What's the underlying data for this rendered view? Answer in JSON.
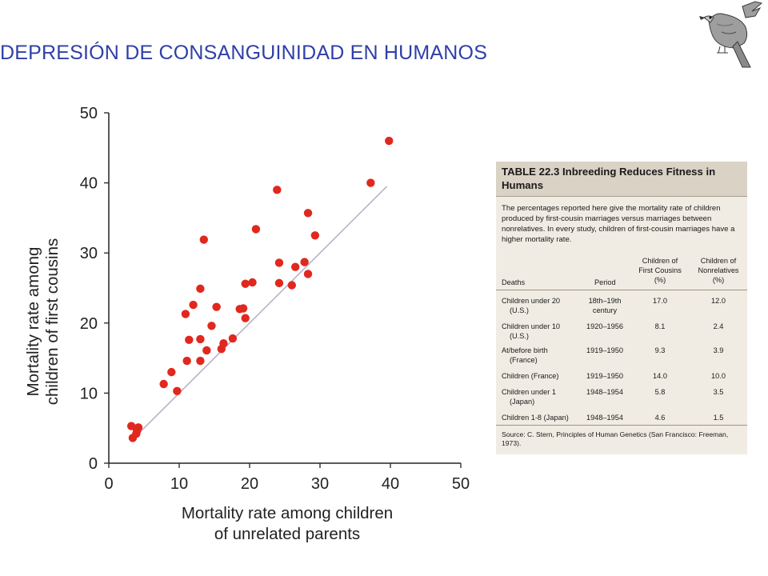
{
  "slide": {
    "title": "DEPRESIÓN  DE CONSANGUINIDAD EN HUMANOS"
  },
  "colors": {
    "title": "#2f3fa8",
    "points": "#e0281e",
    "fit_line": "#b8b2cc",
    "table_bg": "#f1ece3",
    "table_header_bg": "#d9d2c5"
  },
  "icons": {
    "logo": "bird-illustration"
  },
  "chart_data": {
    "type": "scatter",
    "xlabel": [
      "Mortality rate among children",
      "of unrelated parents"
    ],
    "ylabel": [
      "Mortality rate among",
      "children of first cousins"
    ],
    "xlim": [
      0,
      50
    ],
    "ylim": [
      0,
      50
    ],
    "xticks": [
      "0",
      "10",
      "20",
      "30",
      "40",
      "50"
    ],
    "yticks": [
      "0",
      "10",
      "20",
      "30",
      "40",
      "50"
    ],
    "grid": false,
    "reference_line": {
      "from": [
        3.5,
        3.5
      ],
      "to": [
        39.5,
        39.5
      ]
    },
    "points": [
      [
        3.2,
        5.3
      ],
      [
        3.4,
        3.6
      ],
      [
        3.9,
        4.2
      ],
      [
        4.2,
        5.1
      ],
      [
        4.0,
        4.6
      ],
      [
        7.8,
        11.3
      ],
      [
        8.9,
        13.0
      ],
      [
        9.7,
        10.3
      ],
      [
        10.9,
        21.3
      ],
      [
        11.1,
        14.6
      ],
      [
        11.4,
        17.6
      ],
      [
        12.0,
        22.6
      ],
      [
        13.0,
        24.9
      ],
      [
        13.0,
        17.7
      ],
      [
        13.0,
        14.6
      ],
      [
        13.5,
        31.9
      ],
      [
        13.9,
        16.1
      ],
      [
        14.6,
        19.6
      ],
      [
        15.3,
        22.3
      ],
      [
        16.0,
        16.3
      ],
      [
        16.3,
        17.1
      ],
      [
        17.6,
        17.8
      ],
      [
        18.6,
        22.0
      ],
      [
        19.1,
        22.1
      ],
      [
        19.4,
        25.6
      ],
      [
        19.4,
        20.7
      ],
      [
        20.4,
        25.8
      ],
      [
        20.9,
        33.4
      ],
      [
        23.9,
        39.0
      ],
      [
        24.2,
        25.7
      ],
      [
        24.2,
        28.6
      ],
      [
        26.0,
        25.4
      ],
      [
        26.5,
        28.0
      ],
      [
        27.8,
        28.7
      ],
      [
        28.3,
        27.0
      ],
      [
        28.3,
        35.7
      ],
      [
        29.3,
        32.5
      ],
      [
        37.2,
        40.0
      ],
      [
        39.8,
        46.0
      ]
    ]
  },
  "table": {
    "title_line1": "TABLE 22.3  Inbreeding Reduces Fitness in",
    "title_line2": "Humans",
    "description": "The percentages reported here give the mortality rate of children produced by first-cousin marriages versus marriages between nonrelatives. In every study, children of first-cousin marriages have a higher mortality rate.",
    "headers": {
      "deaths": "Deaths",
      "period": "Period",
      "first_cousins": [
        "Children of",
        "First Cousins",
        "(%)"
      ],
      "nonrelatives": [
        "Children of",
        "Nonrelatives",
        "(%)"
      ]
    },
    "rows": [
      {
        "deaths": [
          "Children under 20",
          "(U.S.)"
        ],
        "period": [
          "18th–19th",
          "century"
        ],
        "first_cousins": "17.0",
        "nonrelatives": "12.0"
      },
      {
        "deaths": [
          "Children under 10",
          "(U.S.)"
        ],
        "period": [
          "1920–1956"
        ],
        "first_cousins": "8.1",
        "nonrelatives": "2.4"
      },
      {
        "deaths": [
          "At/before birth",
          "(France)"
        ],
        "period": [
          "1919–1950"
        ],
        "first_cousins": "9.3",
        "nonrelatives": "3.9"
      },
      {
        "deaths": [
          "Children (France)"
        ],
        "period": [
          "1919–1950"
        ],
        "first_cousins": "14.0",
        "nonrelatives": "10.0"
      },
      {
        "deaths": [
          "Children under 1",
          "(Japan)"
        ],
        "period": [
          "1948–1954"
        ],
        "first_cousins": "5.8",
        "nonrelatives": "3.5"
      },
      {
        "deaths": [
          "Children 1-8 (Japan)"
        ],
        "period": [
          "1948–1954"
        ],
        "first_cousins": "4.6",
        "nonrelatives": "1.5"
      }
    ],
    "source": "Source: C. Stern, Principles of Human Genetics (San Francisco: Freeman, 1973)."
  }
}
